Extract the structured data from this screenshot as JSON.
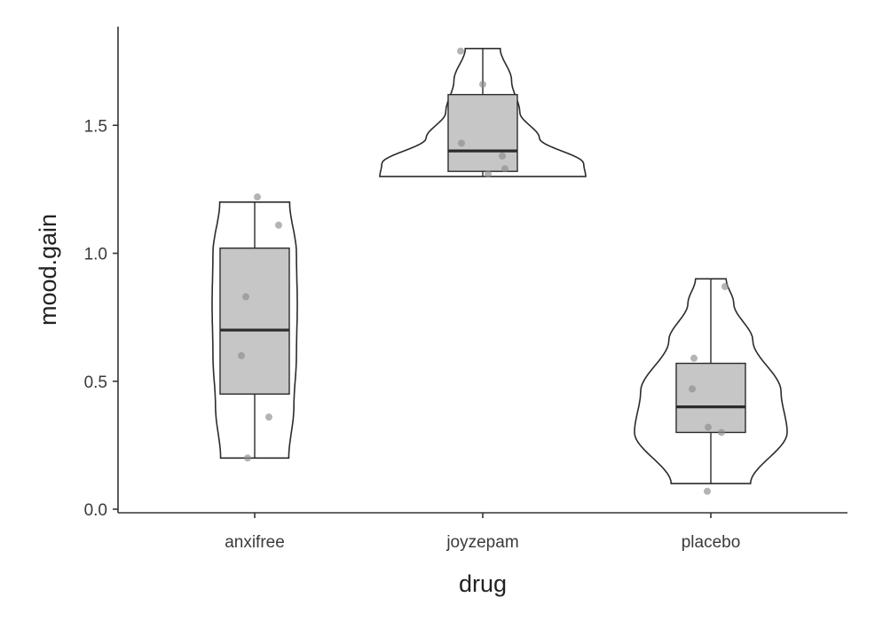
{
  "chart_data": {
    "type": "violin",
    "xlabel": "drug",
    "ylabel": "mood.gain",
    "ylim": [
      0.0,
      1.9
    ],
    "yticks": [
      0.0,
      0.5,
      1.0,
      1.5
    ],
    "ytick_labels": [
      "0.0",
      "0.5",
      "1.0",
      "1.5"
    ],
    "grid": false,
    "legend": "none",
    "categories": [
      "anxifree",
      "joyzepam",
      "placebo"
    ],
    "groups": [
      {
        "category": "anxifree",
        "values": [
          1.22,
          1.11,
          0.83,
          0.6,
          0.36,
          0.2
        ],
        "box": {
          "min": 0.2,
          "q1": 0.45,
          "median": 0.7,
          "q3": 1.02,
          "max": 1.2
        },
        "violin_range": [
          0.2,
          1.2
        ]
      },
      {
        "category": "joyzepam",
        "values": [
          1.79,
          1.66,
          1.43,
          1.38,
          1.33,
          1.31
        ],
        "box": {
          "min": 1.3,
          "q1": 1.32,
          "median": 1.4,
          "q3": 1.62,
          "max": 1.8
        },
        "violin_range": [
          1.3,
          1.8
        ]
      },
      {
        "category": "placebo",
        "values": [
          0.87,
          0.59,
          0.47,
          0.32,
          0.3,
          0.07
        ],
        "box": {
          "min": 0.1,
          "q1": 0.3,
          "median": 0.4,
          "q3": 0.57,
          "max": 0.9
        },
        "violin_range": [
          0.1,
          0.9
        ]
      }
    ],
    "colors": {
      "box_fill": "#c6c6c6",
      "violin_fill": "#ffffff",
      "outline": "#2b2b2b",
      "points": "#8c8c8c"
    }
  }
}
